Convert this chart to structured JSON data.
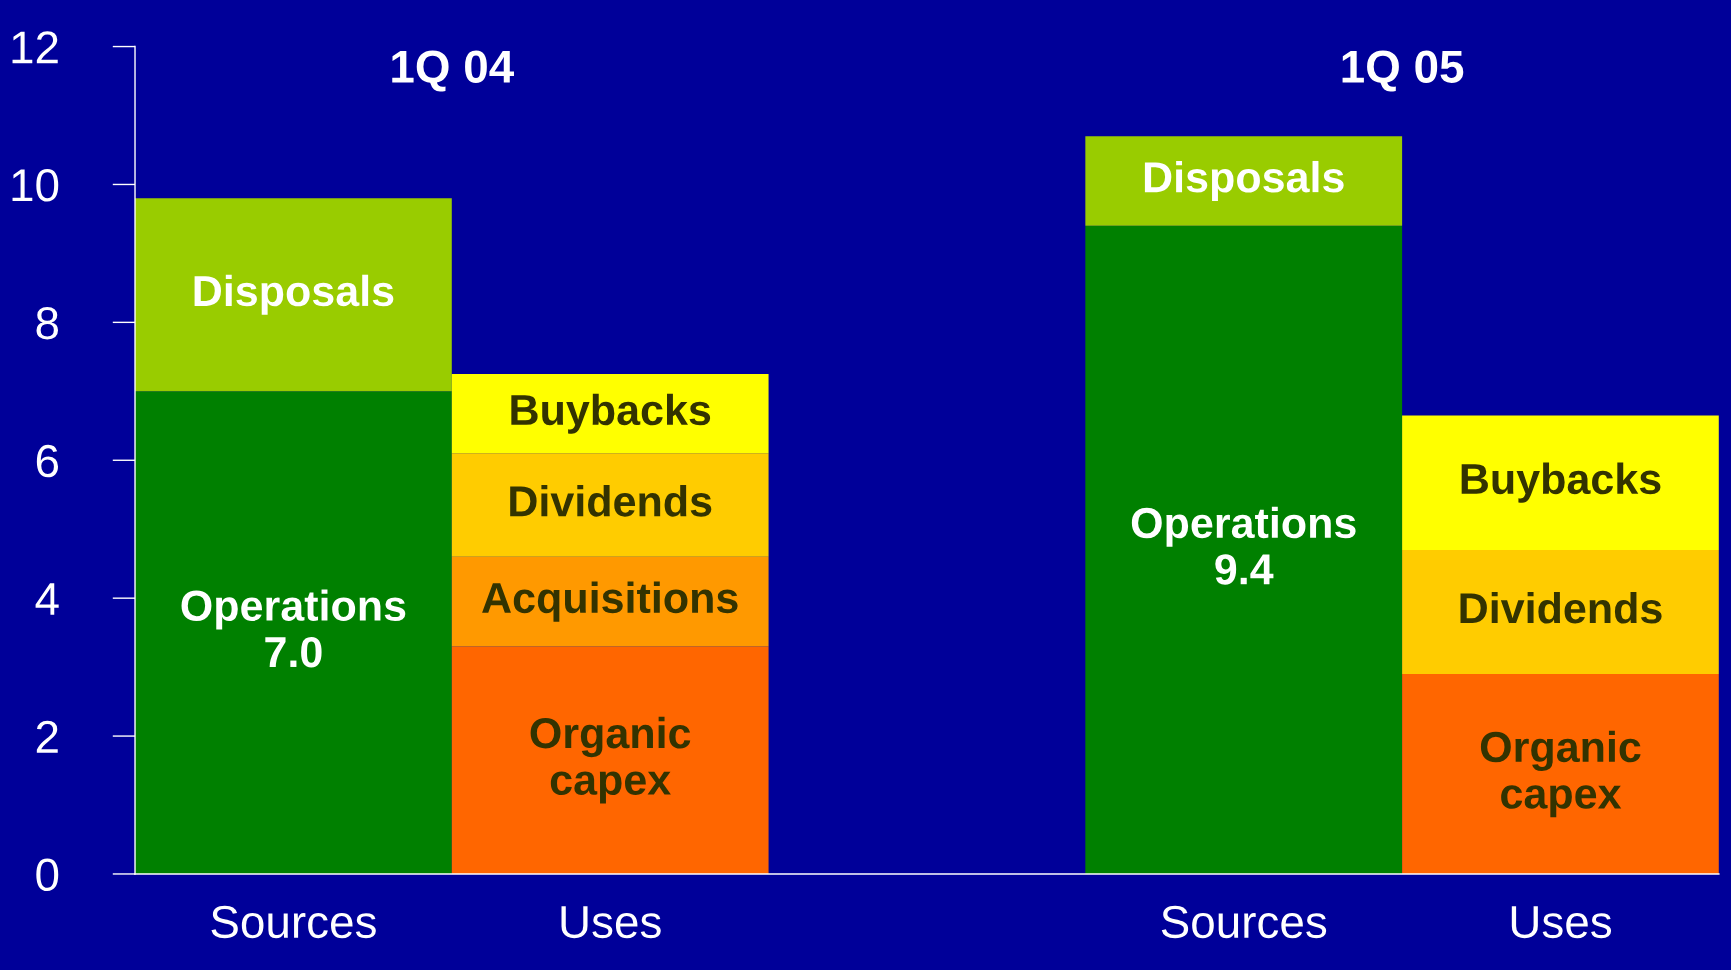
{
  "chart_data": {
    "type": "bar",
    "stacked": true,
    "categories": [
      "Sources",
      "Uses",
      null,
      "Sources",
      "Uses"
    ],
    "series": [
      {
        "name": "Operations",
        "color": "#008000",
        "values": [
          7.0,
          null,
          null,
          9.4,
          null
        ],
        "value_labels": [
          "7.0",
          null,
          null,
          "9.4",
          null
        ]
      },
      {
        "name": "Disposals",
        "color": "#99cc00",
        "values": [
          2.8,
          null,
          null,
          1.3,
          null
        ]
      },
      {
        "name": "Organic capex",
        "color": "#ff6600",
        "values": [
          null,
          3.3,
          null,
          null,
          2.9
        ]
      },
      {
        "name": "Acquisitions",
        "color": "#ff9900",
        "values": [
          null,
          1.3,
          null,
          null,
          null
        ]
      },
      {
        "name": "Dividends",
        "color": "#ffcc00",
        "values": [
          null,
          1.5,
          null,
          null,
          1.8
        ]
      },
      {
        "name": "Buybacks",
        "color": "#ffff00",
        "values": [
          null,
          1.15,
          null,
          null,
          1.95
        ]
      }
    ],
    "annotations": [
      "1Q 04",
      "1Q 05"
    ],
    "ylim": [
      0,
      12
    ],
    "yticks": [
      0,
      2,
      4,
      6,
      8,
      10,
      12
    ],
    "grid": false,
    "legend": false
  }
}
